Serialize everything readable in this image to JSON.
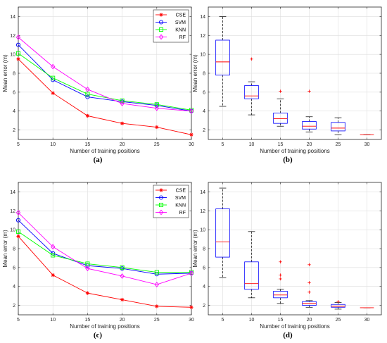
{
  "chart_data": [
    {
      "type": "line",
      "panel_label": "(a)",
      "xlabel": "Number of training positions",
      "ylabel": "Mean error (m)",
      "x": [
        5,
        10,
        15,
        20,
        25,
        30
      ],
      "xlim": [
        5,
        30
      ],
      "ylim": [
        1,
        15
      ],
      "xticks": [
        5,
        10,
        15,
        20,
        25,
        30
      ],
      "yticks": [
        2,
        4,
        6,
        8,
        10,
        12,
        14
      ],
      "grid": true,
      "legend_position": "top-right",
      "series": [
        {
          "name": "CSE",
          "color": "#ff0000",
          "marker": "asterisk",
          "values": [
            9.5,
            5.9,
            3.5,
            2.7,
            2.3,
            1.5
          ]
        },
        {
          "name": "SVM",
          "color": "#0000ff",
          "marker": "circle",
          "values": [
            11.0,
            7.3,
            5.5,
            5.0,
            4.6,
            4.0
          ]
        },
        {
          "name": "KNN",
          "color": "#00ff00",
          "marker": "square",
          "values": [
            10.1,
            7.5,
            5.8,
            5.1,
            4.7,
            4.1
          ]
        },
        {
          "name": "RF",
          "color": "#ff00ff",
          "marker": "diamond",
          "values": [
            11.8,
            8.7,
            6.3,
            4.8,
            4.3,
            4.0
          ]
        }
      ]
    },
    {
      "type": "box",
      "panel_label": "(b)",
      "xlabel": "Number of training positions",
      "ylabel": "Mean error (m)",
      "xlim": [
        1,
        6
      ],
      "ylim": [
        1,
        15
      ],
      "yticks": [
        2,
        4,
        6,
        8,
        10,
        12,
        14
      ],
      "grid": true,
      "categories": [
        "5",
        "10",
        "15",
        "20",
        "25",
        "30"
      ],
      "boxes": [
        {
          "min": 4.5,
          "q1": 7.8,
          "median": 9.2,
          "q3": 11.5,
          "max": 14.0,
          "outliers": []
        },
        {
          "min": 3.6,
          "q1": 5.3,
          "median": 5.6,
          "q3": 6.7,
          "max": 7.1,
          "outliers": [
            9.5
          ]
        },
        {
          "min": 2.4,
          "q1": 2.7,
          "median": 3.2,
          "q3": 3.8,
          "max": 5.3,
          "outliers": [
            6.1
          ]
        },
        {
          "min": 1.8,
          "q1": 2.1,
          "median": 2.4,
          "q3": 2.9,
          "max": 3.4,
          "outliers": [
            6.1
          ]
        },
        {
          "min": 1.5,
          "q1": 1.9,
          "median": 2.2,
          "q3": 2.8,
          "max": 3.3,
          "outliers": []
        },
        {
          "min": 1.5,
          "q1": 1.5,
          "median": 1.5,
          "q3": 1.5,
          "max": 1.5,
          "outliers": []
        }
      ]
    },
    {
      "type": "line",
      "panel_label": "(c)",
      "xlabel": "Number of training positions",
      "ylabel": "Mean error (m)",
      "x": [
        5,
        10,
        15,
        20,
        25,
        30
      ],
      "xlim": [
        5,
        30
      ],
      "ylim": [
        1,
        15
      ],
      "xticks": [
        5,
        10,
        15,
        20,
        25,
        30
      ],
      "yticks": [
        2,
        4,
        6,
        8,
        10,
        12,
        14
      ],
      "grid": true,
      "legend_position": "top-right",
      "series": [
        {
          "name": "CSE",
          "color": "#ff0000",
          "marker": "asterisk",
          "values": [
            9.3,
            5.2,
            3.3,
            2.6,
            1.9,
            1.8
          ]
        },
        {
          "name": "SVM",
          "color": "#0000ff",
          "marker": "circle",
          "values": [
            11.0,
            7.5,
            6.2,
            5.9,
            5.3,
            5.4
          ]
        },
        {
          "name": "KNN",
          "color": "#00ff00",
          "marker": "square",
          "values": [
            9.8,
            7.3,
            6.4,
            6.0,
            5.5,
            5.5
          ]
        },
        {
          "name": "RF",
          "color": "#ff00ff",
          "marker": "diamond",
          "values": [
            11.8,
            8.2,
            5.9,
            5.1,
            4.2,
            5.4
          ]
        }
      ]
    },
    {
      "type": "box",
      "panel_label": "(d)",
      "xlabel": "Number of training positions",
      "ylabel": "Mean error (m)",
      "xlim": [
        1,
        6
      ],
      "ylim": [
        1,
        15
      ],
      "yticks": [
        2,
        4,
        6,
        8,
        10,
        12,
        14
      ],
      "grid": true,
      "categories": [
        "5",
        "10",
        "15",
        "20",
        "25",
        "30"
      ],
      "boxes": [
        {
          "min": 4.9,
          "q1": 7.1,
          "median": 8.7,
          "q3": 12.2,
          "max": 14.4,
          "outliers": []
        },
        {
          "min": 2.8,
          "q1": 3.7,
          "median": 4.3,
          "q3": 6.6,
          "max": 9.8,
          "outliers": []
        },
        {
          "min": 2.2,
          "q1": 2.8,
          "median": 3.1,
          "q3": 3.5,
          "max": 3.7,
          "outliers": [
            4.8,
            5.2,
            6.6
          ]
        },
        {
          "min": 1.8,
          "q1": 2.0,
          "median": 2.2,
          "q3": 2.4,
          "max": 2.5,
          "outliers": [
            3.4,
            4.4,
            6.3
          ]
        },
        {
          "min": 1.6,
          "q1": 1.8,
          "median": 1.9,
          "q3": 2.1,
          "max": 2.3,
          "outliers": [
            2.4
          ]
        },
        {
          "min": 1.75,
          "q1": 1.75,
          "median": 1.75,
          "q3": 1.75,
          "max": 1.75,
          "outliers": []
        }
      ]
    }
  ]
}
